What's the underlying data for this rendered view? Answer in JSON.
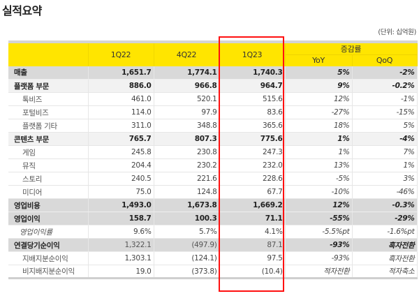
{
  "title": "실적요약",
  "unit": "(단위: 십억원)",
  "header": {
    "periods": [
      "1Q22",
      "4Q22",
      "1Q23"
    ],
    "change_group": "증감률",
    "yoy": "YoY",
    "qoq": "QoQ"
  },
  "highlight_color": "#ff1010",
  "header_color": "#ffe500",
  "rows": [
    {
      "label": "매출",
      "type": "major",
      "values": [
        "1,651.7",
        "1,774.1",
        "1,740.3"
      ],
      "yoy": "5%",
      "qoq": "-2%"
    },
    {
      "label": "플랫폼 부문",
      "type": "section",
      "values": [
        "886.0",
        "966.8",
        "964.7"
      ],
      "yoy": "9%",
      "qoq": "-0.2%"
    },
    {
      "label": "톡비즈",
      "type": "sub",
      "values": [
        "461.0",
        "520.1",
        "515.6"
      ],
      "yoy": "12%",
      "qoq": "-1%"
    },
    {
      "label": "포털비즈",
      "type": "sub",
      "values": [
        "114.0",
        "97.9",
        "83.6"
      ],
      "yoy": "-27%",
      "qoq": "-15%"
    },
    {
      "label": "플랫폼 기타",
      "type": "sub",
      "values": [
        "311.0",
        "348.8",
        "365.6"
      ],
      "yoy": "18%",
      "qoq": "5%"
    },
    {
      "label": "콘텐츠 부문",
      "type": "section",
      "values": [
        "765.7",
        "807.3",
        "775.6"
      ],
      "yoy": "1%",
      "qoq": "-4%"
    },
    {
      "label": "게임",
      "type": "sub",
      "values": [
        "245.8",
        "230.8",
        "247.3"
      ],
      "yoy": "1%",
      "qoq": "7%"
    },
    {
      "label": "뮤직",
      "type": "sub",
      "values": [
        "204.4",
        "230.2",
        "232.0"
      ],
      "yoy": "13%",
      "qoq": "1%"
    },
    {
      "label": "스토리",
      "type": "sub",
      "values": [
        "240.5",
        "221.6",
        "228.6"
      ],
      "yoy": "-5%",
      "qoq": "3%"
    },
    {
      "label": "미디어",
      "type": "sub",
      "values": [
        "75.0",
        "124.8",
        "67.7"
      ],
      "yoy": "-10%",
      "qoq": "-46%"
    },
    {
      "label": "영업비용",
      "type": "major",
      "values": [
        "1,493.0",
        "1,673.8",
        "1,669.2"
      ],
      "yoy": "12%",
      "qoq": "-0.3%"
    },
    {
      "label": "영업이익",
      "type": "major",
      "values": [
        "158.7",
        "100.3",
        "71.1"
      ],
      "yoy": "-55%",
      "qoq": "-29%"
    },
    {
      "label": "영업이익률",
      "type": "ratio",
      "values": [
        "9.6%",
        "5.7%",
        "4.1%"
      ],
      "yoy": "-5.5%pt",
      "qoq": "-1.6%pt"
    },
    {
      "label": "연결당기순이익",
      "type": "major nbnum",
      "values": [
        "1,322.1",
        "(497.9)",
        "87.1"
      ],
      "yoy": "-93%",
      "qoq": "흑자전환"
    },
    {
      "label": "지배지분순이익",
      "type": "sub",
      "values": [
        "1,303.1",
        "(124.1)",
        "97.5"
      ],
      "yoy": "-93%",
      "qoq": "흑자전환"
    },
    {
      "label": "비지배지분순이익",
      "type": "sub",
      "values": [
        "19.0",
        "(373.8)",
        "(10.4)"
      ],
      "yoy": "적자전환",
      "qoq": "적자축소"
    }
  ]
}
